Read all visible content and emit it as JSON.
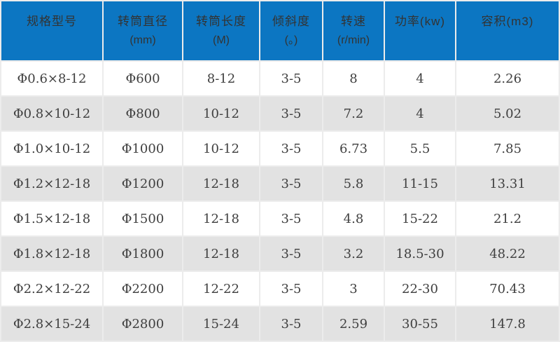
{
  "chart_data": {
    "type": "table",
    "title": "",
    "columns": [
      {
        "label": "规格型号",
        "sub": ""
      },
      {
        "label": "转筒直径",
        "sub": "(mm)"
      },
      {
        "label": "转筒长度",
        "sub": "(M)"
      },
      {
        "label": "倾斜度",
        "sub": "(。)"
      },
      {
        "label": "转速",
        "sub": "(r/min)"
      },
      {
        "label": "功率(kw)",
        "sub": ""
      },
      {
        "label": "容积(m3)",
        "sub": ""
      }
    ],
    "rows": [
      [
        "Φ0.6×8-12",
        "Φ600",
        "8-12",
        "3-5",
        "8",
        "4",
        "2.26"
      ],
      [
        "Φ0.8×10-12",
        "Φ800",
        "10-12",
        "3-5",
        "7.2",
        "4",
        "5.02"
      ],
      [
        "Φ1.0×10-12",
        "Φ1000",
        "10-12",
        "3-5",
        "6.73",
        "5.5",
        "7.85"
      ],
      [
        "Φ1.2×12-18",
        "Φ1200",
        "12-18",
        "3-5",
        "5.8",
        "11-15",
        "13.31"
      ],
      [
        "Φ1.5×12-18",
        "Φ1500",
        "12-18",
        "3-5",
        "4.8",
        "15-22",
        "21.2"
      ],
      [
        "Φ1.8×12-18",
        "Φ1800",
        "12-18",
        "3-5",
        "3.2",
        "18.5-30",
        "48.22"
      ],
      [
        "Φ2.2×12-22",
        "Φ2200",
        "12-22",
        "3-5",
        "3",
        "22-30",
        "70.43"
      ],
      [
        "Φ2.8×15-24",
        "Φ2800",
        "15-24",
        "3-5",
        "2.59",
        "30-55",
        "147.8"
      ]
    ]
  },
  "colors": {
    "header_bg": "#0c76c2",
    "header_text": "#333333",
    "row_bg": "#ffffff",
    "row_alt_bg": "#e2e2e2",
    "cell_text": "#3f3f3f",
    "grid_gap": "#ececec"
  }
}
